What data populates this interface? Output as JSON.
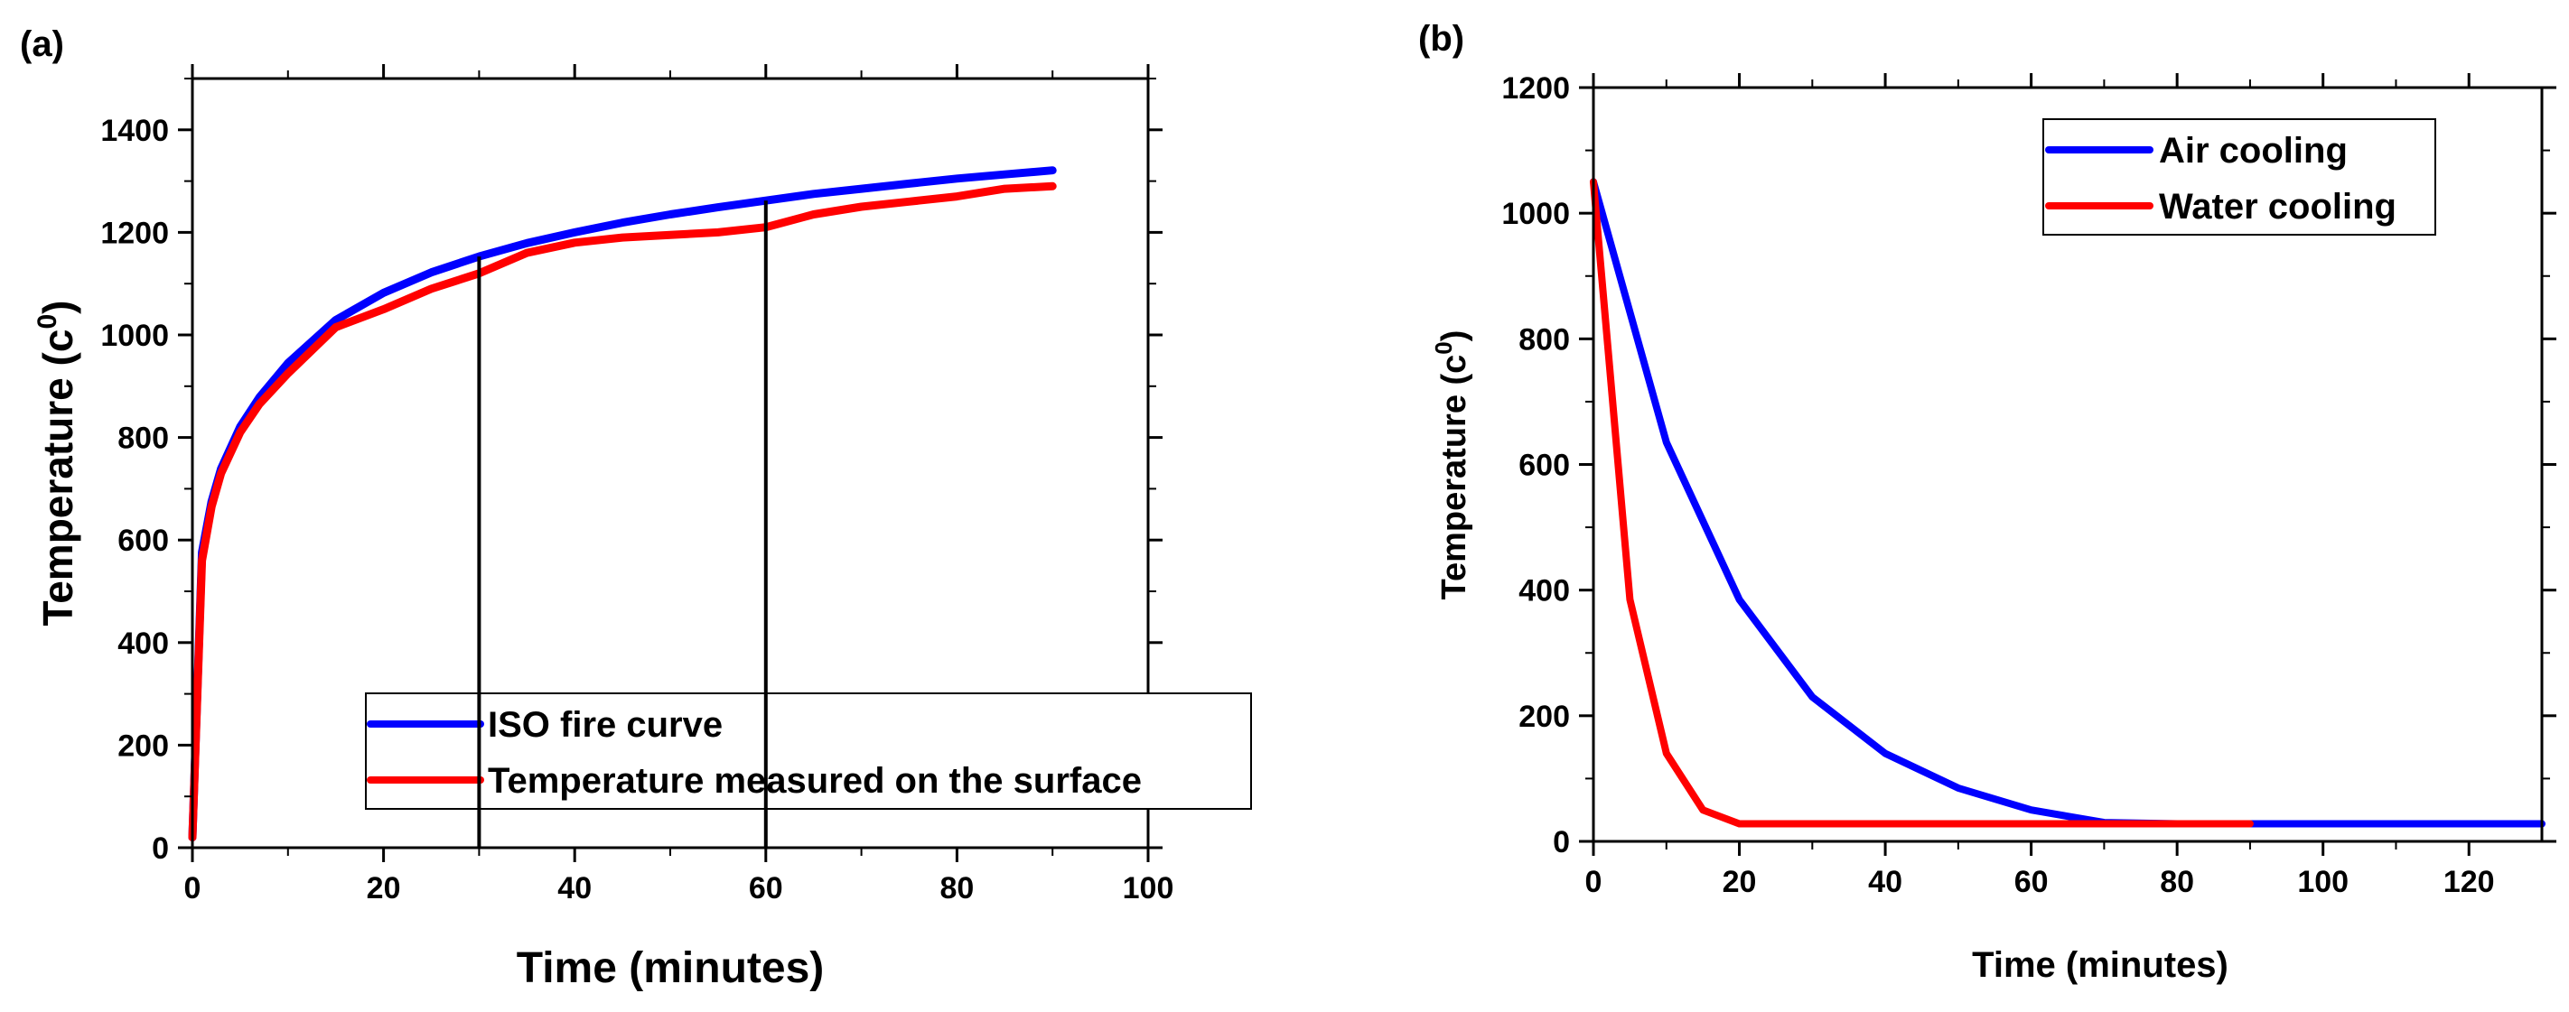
{
  "chart_data": [
    {
      "type": "line",
      "panel_label": "(a)",
      "xlabel": "Time (minutes)",
      "ylabel": "Temperature (c",
      "ylabel_sup": "0",
      "ylabel_close": ")",
      "xlim": [
        0,
        100
      ],
      "ylim": [
        0,
        1500
      ],
      "xticks": [
        0,
        20,
        40,
        60,
        80,
        100
      ],
      "yticks": [
        0,
        200,
        400,
        600,
        800,
        1000,
        1200,
        1400
      ],
      "legend_position": "bottom-right",
      "grid": false,
      "series": [
        {
          "name": "ISO fire curve",
          "color": "#0000ff",
          "x": [
            0,
            1,
            2,
            3,
            5,
            7,
            10,
            15,
            20,
            25,
            30,
            35,
            40,
            45,
            50,
            55,
            60,
            65,
            70,
            75,
            80,
            85,
            90
          ],
          "y": [
            20,
            576,
            675,
            739,
            821,
            878,
            945,
            1029,
            1082,
            1122,
            1153,
            1179,
            1200,
            1219,
            1235,
            1249,
            1262,
            1275,
            1285,
            1295,
            1305,
            1313,
            1321
          ]
        },
        {
          "name": "Temperature measured on the surface",
          "color": "#ff0000",
          "x": [
            0,
            1,
            2,
            3,
            5,
            7,
            10,
            15,
            20,
            25,
            30,
            35,
            40,
            45,
            50,
            55,
            60,
            65,
            70,
            75,
            80,
            85,
            90
          ],
          "y": [
            20,
            560,
            665,
            730,
            810,
            865,
            925,
            1015,
            1050,
            1090,
            1120,
            1160,
            1180,
            1190,
            1195,
            1200,
            1210,
            1235,
            1250,
            1260,
            1270,
            1285,
            1290
          ]
        }
      ],
      "vertical_markers": [
        30,
        60
      ]
    },
    {
      "type": "line",
      "panel_label": "(b)",
      "xlabel": "Time (minutes)",
      "ylabel": "Temperature (c",
      "ylabel_sup": "0",
      "ylabel_close": ")",
      "xlim": [
        0,
        130
      ],
      "ylim": [
        0,
        1200
      ],
      "xticks": [
        0,
        20,
        40,
        60,
        80,
        100,
        120
      ],
      "yticks": [
        0,
        200,
        400,
        600,
        800,
        1000,
        1200
      ],
      "legend_position": "top-right",
      "grid": false,
      "series": [
        {
          "name": "Air cooling",
          "color": "#0000ff",
          "x": [
            0,
            10,
            20,
            30,
            40,
            50,
            60,
            70,
            80,
            90,
            100,
            110,
            120,
            130
          ],
          "y": [
            1050,
            635,
            385,
            230,
            140,
            85,
            50,
            30,
            28,
            28,
            28,
            28,
            28,
            28
          ]
        },
        {
          "name": "Water cooling",
          "color": "#ff0000",
          "x": [
            0,
            5,
            10,
            15,
            20,
            30,
            40,
            50,
            60,
            70,
            80,
            90
          ],
          "y": [
            1050,
            385,
            140,
            50,
            28,
            28,
            28,
            28,
            28,
            28,
            28,
            28
          ]
        }
      ]
    }
  ]
}
